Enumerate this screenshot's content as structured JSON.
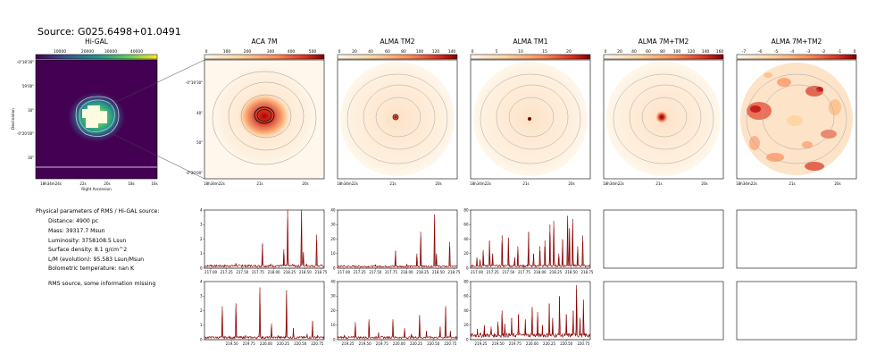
{
  "source_title": "Source: G025.6498+01.0491",
  "info": {
    "heading": "Physical parameters of RMS / Hi-GAL source:",
    "distance": "Distance: 4900 pc",
    "mass": "Mass: 39317.7 Msun",
    "luminosity": "Luminosity: 3758108.5 Lsun",
    "surface_density": "Surface density: 8.1 g/cm^2",
    "lm_ratio": "L/M (evolution): 95.583 Lsun/Msun",
    "bol_temp": "Bolometric temperature: nan K",
    "note": "RMS source, some information missing"
  },
  "chart_data": [
    {
      "type": "heatmap",
      "title": "Hi-GAL",
      "colormap": "viridis",
      "colorbar_ticks": [
        "10000",
        "20000",
        "30000",
        "40000"
      ],
      "xlabel": "Right Ascension",
      "ylabel": "Declination",
      "x_ticks": [
        "18h34m24s",
        "22s",
        "20s",
        "18s",
        "16s"
      ],
      "y_ticks": [
        "-0°18'30\"",
        "30\"",
        "-0°20'00\"",
        "30\"",
        "30\""
      ],
      "y_ticks_top": [
        "-0°18'30\"",
        "59'00\""
      ]
    },
    {
      "type": "heatmap",
      "title": "ACA 7M",
      "colormap": "OrRd",
      "colorbar_ticks": [
        "0",
        "100",
        "200",
        "300",
        "400",
        "500"
      ],
      "x_ticks": [
        "18h34m22s",
        "21s",
        "20s"
      ],
      "y_ticks": [
        "-0°19'30\"",
        "40\"",
        "50\"",
        "-0°20'00\""
      ]
    },
    {
      "type": "heatmap",
      "title": "ALMA TM2",
      "colormap": "OrRd",
      "colorbar_ticks": [
        "0",
        "20",
        "40",
        "60",
        "80",
        "100",
        "120",
        "140"
      ],
      "x_ticks": [
        "18h34m22s",
        "21s",
        "20s"
      ]
    },
    {
      "type": "heatmap",
      "title": "ALMA TM1",
      "colormap": "OrRd",
      "colorbar_ticks": [
        "0",
        "5",
        "10",
        "15",
        "20"
      ],
      "x_ticks": [
        "18h34m22s",
        "21s",
        "20s"
      ]
    },
    {
      "type": "heatmap",
      "title": "ALMA 7M+TM2",
      "colormap": "OrRd",
      "colorbar_ticks": [
        "0",
        "20",
        "40",
        "60",
        "80",
        "100",
        "120",
        "140",
        "160"
      ],
      "x_ticks": [
        "18h34m22s",
        "21s",
        "20s"
      ]
    },
    {
      "type": "heatmap",
      "title": "ALMA 7M+TM2",
      "colormap": "OrRd",
      "colorbar_ticks": [
        "-7",
        "-6",
        "-5",
        "-4",
        "-3",
        "-2",
        "-1",
        "0"
      ],
      "x_ticks": [
        "18h34m22s",
        "21s",
        "20s"
      ]
    },
    {
      "type": "line",
      "panel": "spectrum-aca-7m-band1",
      "x_ticks": [
        "217.00",
        "217.25",
        "217.50",
        "217.75",
        "218.00",
        "218.25",
        "218.50",
        "218.75"
      ],
      "y_ticks": [
        "0",
        "1",
        "2",
        "3",
        "4"
      ],
      "xlim": [
        216.9,
        218.8
      ],
      "ylim": [
        0,
        4
      ],
      "x": [
        217.0,
        217.15,
        217.3,
        217.4,
        217.5,
        217.62,
        217.82,
        217.95,
        218.16,
        218.22,
        218.3,
        218.44,
        218.47,
        218.52,
        218.68,
        218.76
      ],
      "y": [
        0.25,
        0.2,
        0.18,
        0.35,
        0.25,
        0.22,
        1.7,
        0.3,
        1.3,
        4.0,
        0.3,
        4.0,
        1.1,
        0.3,
        2.3,
        0.25
      ],
      "baseline": 0.15,
      "color": "#8b0000"
    },
    {
      "type": "line",
      "panel": "spectrum-alma-tm2-band1",
      "x_ticks": [
        "217.00",
        "217.25",
        "217.50",
        "217.75",
        "218.00",
        "218.25",
        "218.50",
        "218.75"
      ],
      "y_ticks": [
        "0",
        "10",
        "20",
        "30",
        "40"
      ],
      "xlim": [
        216.9,
        218.8
      ],
      "ylim": [
        0,
        40
      ],
      "x": [
        217.0,
        217.1,
        217.5,
        217.82,
        218.0,
        218.16,
        218.22,
        218.44,
        218.47,
        218.68
      ],
      "y": [
        2.0,
        1.5,
        2.5,
        12.0,
        3.0,
        10.0,
        25.0,
        37.0,
        10.0,
        18.0
      ],
      "baseline": 1.2,
      "color": "#8b0000"
    },
    {
      "type": "line",
      "panel": "spectrum-alma-tm1-band1",
      "x_ticks": [
        "217.00",
        "217.25",
        "217.50",
        "217.75",
        "218.00",
        "218.25",
        "218.50",
        "218.75"
      ],
      "y_ticks": [
        "0",
        "20",
        "40",
        "60",
        "80"
      ],
      "xlim": [
        216.9,
        218.8
      ],
      "ylim": [
        0,
        80
      ],
      "x": [
        217.0,
        217.05,
        217.1,
        217.2,
        217.25,
        217.4,
        217.5,
        217.6,
        217.65,
        217.82,
        217.9,
        218.0,
        218.08,
        218.16,
        218.22,
        218.3,
        218.36,
        218.44,
        218.47,
        218.52,
        218.6,
        218.68
      ],
      "y": [
        15,
        12,
        25,
        38,
        20,
        45,
        42,
        15,
        30,
        50,
        20,
        30,
        38,
        60,
        65,
        20,
        40,
        72,
        55,
        68,
        30,
        45
      ],
      "baseline": 3,
      "color": "#8b0000"
    },
    {
      "type": "line",
      "panel": "spectrum-aca-7m-band2",
      "x_ticks": [
        "219.50",
        "219.75",
        "220.00",
        "220.25",
        "220.50",
        "220.75"
      ],
      "y_ticks": [
        "0",
        "1",
        "2",
        "3",
        "4"
      ],
      "xlim": [
        219.1,
        220.85
      ],
      "ylim": [
        0,
        4
      ],
      "x": [
        219.2,
        219.36,
        219.56,
        219.7,
        219.91,
        220.08,
        220.18,
        220.3,
        220.4,
        220.6,
        220.68,
        220.75
      ],
      "y": [
        0.2,
        2.3,
        2.5,
        0.3,
        3.6,
        1.1,
        0.3,
        3.4,
        0.8,
        0.4,
        1.3,
        0.3
      ],
      "baseline": 0.15,
      "color": "#8b0000"
    },
    {
      "type": "line",
      "panel": "spectrum-alma-tm2-band2",
      "x_ticks": [
        "219.25",
        "219.50",
        "219.75",
        "220.00",
        "220.25",
        "220.50",
        "220.75"
      ],
      "y_ticks": [
        "0",
        "10",
        "20",
        "30",
        "40"
      ],
      "xlim": [
        219.1,
        220.85
      ],
      "ylim": [
        0,
        40
      ],
      "x": [
        219.2,
        219.36,
        219.56,
        219.7,
        219.91,
        220.08,
        220.18,
        220.3,
        220.4,
        220.6,
        220.68,
        220.75
      ],
      "y": [
        3,
        12,
        14,
        5,
        14,
        8,
        4,
        17,
        6,
        9,
        23,
        6
      ],
      "baseline": 1.5,
      "color": "#8b0000"
    },
    {
      "type": "line",
      "panel": "spectrum-alma-tm1-band2",
      "x_ticks": [
        "219.25",
        "219.50",
        "219.75",
        "220.00",
        "220.25",
        "220.50",
        "220.75"
      ],
      "y_ticks": [
        "0",
        "20",
        "40",
        "60",
        "80"
      ],
      "xlim": [
        219.1,
        220.85
      ],
      "ylim": [
        0,
        80
      ],
      "x": [
        219.2,
        219.3,
        219.4,
        219.5,
        219.56,
        219.6,
        219.7,
        219.8,
        219.9,
        220.0,
        220.08,
        220.15,
        220.25,
        220.3,
        220.4,
        220.5,
        220.6,
        220.65,
        220.7,
        220.75
      ],
      "y": [
        15,
        20,
        18,
        25,
        40,
        22,
        30,
        35,
        28,
        45,
        38,
        20,
        50,
        30,
        60,
        35,
        40,
        75,
        30,
        55
      ],
      "baseline": 6,
      "color": "#8b0000"
    },
    {
      "type": "line",
      "panel": "spectrum-empty-7m-tm2-band1"
    },
    {
      "type": "line",
      "panel": "spectrum-empty-7m-tm2b-band1"
    },
    {
      "type": "line",
      "panel": "spectrum-empty-7m-tm2-band2"
    },
    {
      "type": "line",
      "panel": "spectrum-empty-7m-tm2b-band2"
    }
  ]
}
